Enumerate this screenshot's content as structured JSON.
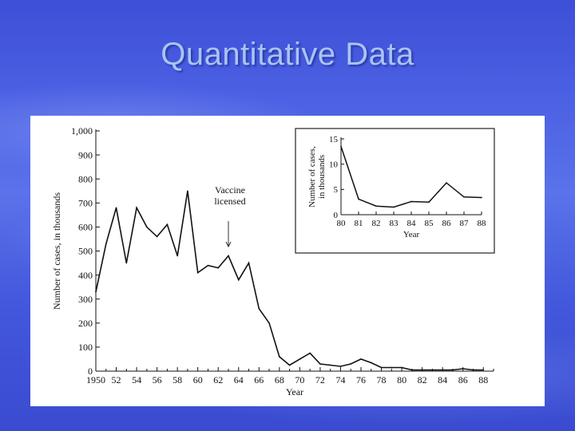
{
  "title": "Quantitative Data",
  "chart_data": [
    {
      "type": "line",
      "title": "",
      "xlabel": "Year",
      "ylabel": "Number of cases, in thousands",
      "xlim": [
        1950,
        1989
      ],
      "ylim": [
        0,
        1000
      ],
      "x_ticks": [
        1950,
        1952,
        1954,
        1956,
        1958,
        1960,
        1962,
        1964,
        1966,
        1968,
        1970,
        1972,
        1974,
        1976,
        1978,
        1980,
        1982,
        1984,
        1986,
        1988
      ],
      "x_tick_labels": [
        "1950",
        "52",
        "54",
        "56",
        "58",
        "60",
        "62",
        "64",
        "66",
        "68",
        "70",
        "72",
        "74",
        "76",
        "78",
        "80",
        "82",
        "84",
        "86",
        "88"
      ],
      "y_ticks": [
        0,
        100,
        200,
        300,
        400,
        500,
        600,
        700,
        800,
        900,
        1000
      ],
      "y_tick_labels": [
        "0",
        "100",
        "200",
        "300",
        "400",
        "500",
        "600",
        "700",
        "800",
        "900",
        "1,000"
      ],
      "annotation": {
        "text_lines": [
          "Vaccine",
          "licensed"
        ],
        "x": 1963
      },
      "series": [
        {
          "x": [
            1950,
            1951,
            1952,
            1953,
            1954,
            1955,
            1956,
            1957,
            1958,
            1959,
            1960,
            1961,
            1962,
            1963,
            1964,
            1965,
            1966,
            1967,
            1968,
            1969,
            1970,
            1971,
            1972,
            1973,
            1974,
            1975,
            1976,
            1977,
            1978,
            1979,
            1980,
            1981,
            1982,
            1983,
            1984,
            1985,
            1986,
            1987,
            1988
          ],
          "values": [
            330,
            530,
            680,
            450,
            680,
            600,
            560,
            610,
            480,
            750,
            410,
            440,
            430,
            480,
            380,
            450,
            260,
            200,
            60,
            25,
            50,
            75,
            30,
            25,
            20,
            30,
            50,
            35,
            15,
            15,
            15,
            5,
            5,
            5,
            5,
            5,
            10,
            5,
            5
          ]
        }
      ]
    },
    {
      "type": "line",
      "title": "",
      "xlabel": "Year",
      "ylabel": "Number of cases, in thousands",
      "xlim": [
        80,
        88
      ],
      "ylim": [
        0,
        15
      ],
      "x_ticks": [
        80,
        81,
        82,
        83,
        84,
        85,
        86,
        87,
        88
      ],
      "x_tick_labels": [
        "80",
        "81",
        "82",
        "83",
        "84",
        "85",
        "86",
        "87",
        "88"
      ],
      "y_ticks": [
        0,
        5,
        10,
        15
      ],
      "y_tick_labels": [
        "0",
        "5",
        "10",
        "15"
      ],
      "series": [
        {
          "x": [
            80,
            81,
            82,
            83,
            84,
            85,
            86,
            87,
            88
          ],
          "values": [
            13.5,
            3.1,
            1.7,
            1.5,
            2.6,
            2.5,
            6.3,
            3.5,
            3.4
          ]
        }
      ]
    }
  ]
}
